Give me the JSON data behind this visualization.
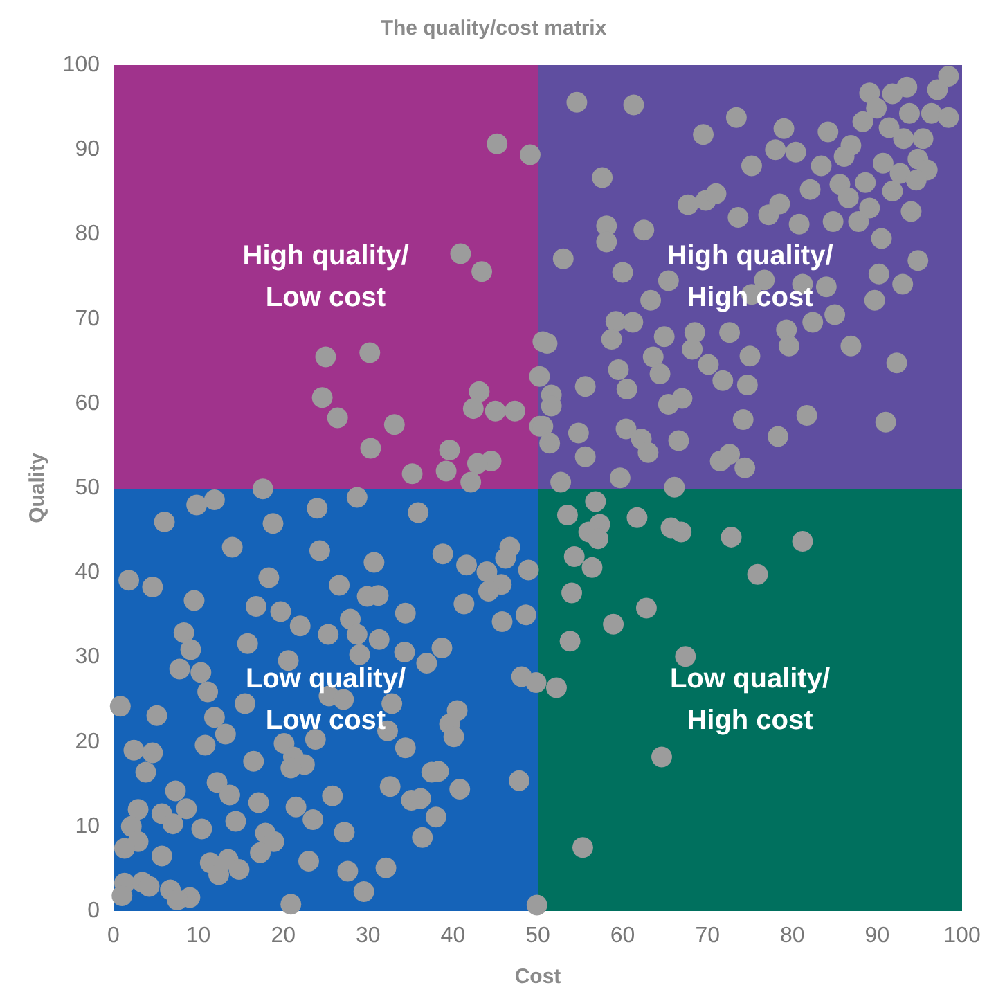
{
  "chart_data": {
    "type": "scatter",
    "title": "The quality/cost matrix",
    "xlabel": "Cost",
    "ylabel": "Quality",
    "xlim": [
      0,
      100
    ],
    "xticks": [
      0,
      10,
      20,
      30,
      40,
      50,
      60,
      70,
      80,
      90,
      100
    ],
    "ylim": [
      0,
      100
    ],
    "yticks": [
      0,
      10,
      20,
      30,
      40,
      50,
      60,
      70,
      80,
      90,
      100
    ],
    "grid": false,
    "marker": "circle",
    "annotations": [
      "High quality/\nLow cost",
      "High quality/\nHigh cost",
      "Low quality/\nLow cost",
      "Low quality/\nHigh cost"
    ],
    "series": [
      {
        "color": "#9c9c9c",
        "x": [
          45.2,
          49.1,
          40.9,
          43.4,
          25.0,
          30.2,
          24.6,
          26.4,
          33.1,
          30.3,
          35.2,
          39.6,
          39.2,
          43.1,
          42.4,
          45.0,
          47.3,
          44.5,
          42.9,
          42.1,
          50.2,
          50.6,
          54.6,
          61.3,
          73.4,
          69.5,
          79.0,
          89.1,
          93.5,
          98.4,
          97.1,
          96.4,
          93.8,
          98.4,
          89.9,
          88.3,
          91.8,
          84.2,
          78.0,
          80.4,
          75.2,
          86.1,
          86.9,
          91.4,
          93.1,
          95.4,
          90.7,
          92.7,
          94.8,
          95.9,
          94.6,
          91.8,
          83.4,
          82.1,
          85.6,
          88.6,
          86.6,
          57.6,
          67.7,
          69.8,
          71.0,
          73.6,
          77.2,
          78.5,
          80.8,
          84.8,
          87.8,
          89.1,
          94.0,
          90.5,
          94.8,
          58.1,
          58.1,
          62.5,
          53.0,
          60.0,
          65.4,
          63.3,
          76.7,
          75.2,
          81.2,
          84.0,
          90.2,
          93.0,
          89.7,
          85.0,
          82.4,
          79.3,
          79.6,
          72.6,
          68.5,
          68.2,
          64.9,
          59.2,
          61.2,
          58.7,
          51.1,
          63.6,
          64.4,
          59.5,
          55.6,
          60.5,
          50.2,
          51.6,
          51.6,
          70.1,
          71.8,
          75.0,
          74.7,
          65.4,
          67.0,
          86.9,
          92.3,
          81.7,
          91.0,
          74.2,
          78.3,
          66.6,
          50.6,
          51.4,
          54.8,
          55.6,
          60.4,
          62.2,
          63.0,
          71.5,
          72.6,
          74.4,
          52.7,
          59.7,
          66.1,
          11.9,
          9.8,
          17.6,
          6.0,
          18.8,
          24.0,
          28.7,
          35.9,
          14.0,
          24.3,
          30.7,
          1.8,
          4.6,
          18.3,
          38.8,
          41.6,
          44.0,
          45.7,
          44.2,
          46.7,
          46.2,
          48.9,
          26.6,
          29.9,
          31.2,
          9.5,
          16.8,
          19.7,
          22.0,
          27.9,
          34.4,
          41.3,
          45.8,
          48.6,
          8.3,
          9.1,
          15.8,
          25.3,
          28.7,
          31.3,
          34.3,
          38.7,
          20.6,
          29.0,
          7.8,
          10.3,
          36.9,
          48.1,
          49.8,
          11.1,
          25.4,
          27.1,
          15.5,
          0.8,
          5.1,
          11.9,
          32.8,
          40.5,
          39.6,
          40.1,
          13.2,
          20.1,
          23.8,
          32.3,
          34.4,
          10.8,
          2.4,
          4.6,
          3.8,
          16.5,
          21.2,
          22.5,
          20.9,
          32.6,
          37.5,
          38.3,
          47.8,
          40.8,
          12.2,
          13.7,
          7.3,
          25.8,
          35.1,
          36.2,
          17.1,
          21.5,
          2.9,
          5.7,
          8.6,
          7.0,
          14.4,
          23.5,
          38.0,
          2.1,
          10.4,
          27.2,
          17.9,
          18.9,
          2.9,
          1.3,
          36.4,
          17.3,
          5.7,
          11.4,
          13.5,
          14.8,
          12.4,
          23.0,
          27.6,
          32.1,
          1.3,
          3.4,
          4.2,
          1.0,
          6.7,
          9.0,
          7.5,
          20.9,
          29.5,
          49.9,
          56.8,
          53.5,
          61.7,
          56.0,
          57.3,
          57.1,
          65.7,
          66.9,
          72.8,
          81.2,
          54.3,
          56.4,
          75.9,
          54.0,
          62.8,
          58.9,
          53.8,
          67.4,
          52.2,
          64.6,
          55.3
        ],
        "values": [
          90.7,
          89.4,
          77.7,
          75.6,
          65.5,
          66.0,
          60.7,
          58.3,
          57.5,
          54.7,
          51.7,
          54.5,
          52.0,
          61.4,
          59.4,
          59.1,
          59.1,
          53.2,
          52.9,
          50.7,
          57.3,
          67.3,
          95.6,
          95.3,
          93.8,
          91.8,
          92.5,
          96.7,
          97.4,
          98.7,
          97.1,
          94.3,
          94.3,
          93.8,
          94.9,
          93.3,
          96.6,
          92.1,
          90.0,
          89.7,
          88.1,
          89.2,
          90.5,
          92.6,
          91.3,
          91.3,
          88.4,
          87.2,
          88.9,
          87.6,
          86.4,
          85.1,
          88.1,
          85.3,
          85.9,
          86.1,
          84.3,
          86.7,
          83.5,
          84.0,
          84.8,
          82.0,
          82.3,
          83.6,
          81.2,
          81.5,
          81.5,
          83.1,
          82.7,
          79.5,
          76.9,
          81.0,
          79.1,
          80.5,
          77.1,
          75.5,
          74.5,
          72.2,
          74.6,
          72.9,
          74.1,
          73.8,
          75.3,
          74.1,
          72.2,
          70.5,
          69.6,
          68.7,
          66.8,
          68.4,
          68.4,
          66.4,
          67.9,
          69.7,
          69.6,
          67.6,
          67.1,
          65.5,
          63.5,
          64.0,
          62.0,
          61.7,
          63.2,
          61.0,
          59.7,
          64.6,
          62.7,
          65.6,
          62.2,
          59.9,
          60.6,
          66.8,
          64.8,
          58.6,
          57.8,
          58.1,
          56.1,
          55.6,
          57.3,
          55.3,
          56.5,
          53.7,
          57.0,
          55.8,
          54.2,
          53.2,
          54.0,
          52.4,
          50.7,
          51.2,
          50.1,
          48.6,
          48.0,
          49.9,
          46.0,
          45.8,
          47.6,
          48.9,
          47.1,
          43.0,
          42.6,
          41.2,
          39.1,
          38.3,
          39.4,
          42.2,
          40.9,
          40.1,
          38.6,
          37.8,
          43.0,
          41.7,
          40.3,
          38.5,
          37.2,
          37.3,
          36.7,
          36.0,
          35.4,
          33.7,
          34.5,
          35.2,
          36.3,
          34.2,
          35.0,
          32.9,
          30.9,
          31.6,
          32.7,
          32.7,
          32.1,
          30.6,
          31.1,
          29.6,
          30.3,
          28.6,
          28.2,
          29.3,
          27.7,
          27.0,
          25.9,
          25.4,
          25.0,
          24.5,
          24.2,
          23.1,
          22.9,
          24.5,
          23.7,
          22.1,
          20.6,
          20.9,
          19.8,
          20.3,
          21.3,
          19.3,
          19.6,
          19.0,
          18.7,
          16.4,
          17.7,
          18.2,
          17.3,
          16.9,
          14.7,
          16.4,
          16.5,
          15.4,
          14.4,
          15.2,
          13.7,
          14.2,
          13.6,
          13.1,
          13.3,
          12.8,
          12.3,
          12.0,
          11.5,
          12.1,
          10.3,
          10.6,
          10.8,
          11.1,
          10.0,
          9.7,
          9.3,
          9.2,
          8.2,
          8.2,
          7.4,
          8.7,
          6.9,
          6.5,
          5.7,
          6.1,
          4.9,
          4.3,
          5.9,
          4.7,
          5.1,
          3.3,
          3.4,
          2.9,
          1.8,
          2.5,
          1.6,
          1.3,
          0.8,
          2.3,
          0.7,
          48.4,
          46.8,
          46.5,
          44.8,
          45.7,
          44.0,
          45.3,
          44.8,
          44.2,
          43.7,
          41.9,
          40.6,
          39.8,
          37.6,
          35.8,
          33.9,
          31.9,
          30.1,
          26.4,
          18.2,
          7.5
        ]
      }
    ]
  }
}
